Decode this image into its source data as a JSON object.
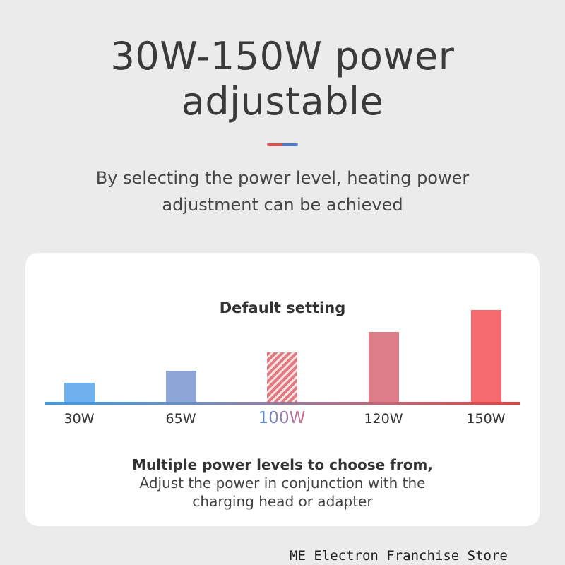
{
  "header": {
    "title_line1": "30W-150W power",
    "title_line2": "adjustable",
    "subtitle_line1": "By selecting the power level, heating power",
    "subtitle_line2": "adjustment can be achieved"
  },
  "card": {
    "default_label": "Default setting",
    "levels": [
      {
        "label": "30W",
        "color": "#6fb1ee"
      },
      {
        "label": "65W",
        "color": "#8ea6d6"
      },
      {
        "label": "100W",
        "color": "#e07a80",
        "default": true
      },
      {
        "label": "120W",
        "color": "#dc7d88"
      },
      {
        "label": "150W",
        "color": "#f56a6e"
      }
    ],
    "caption_bold": "Multiple power levels to choose from,",
    "caption_line1": "Adjust the power in conjunction with the",
    "caption_line2": "charging head or adapter"
  },
  "watermark": "ME Electron Franchise Store"
}
